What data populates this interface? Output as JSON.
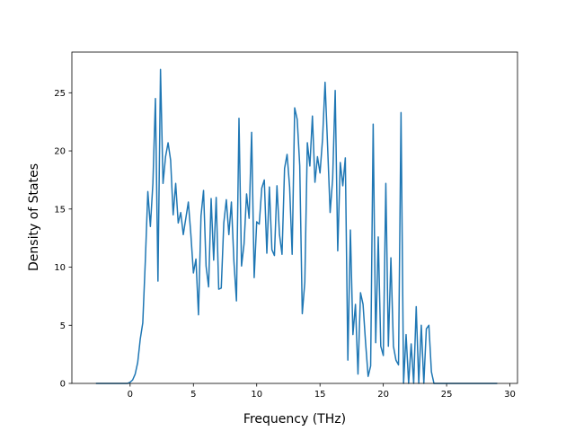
{
  "chart_data": {
    "type": "line",
    "title": "",
    "xlabel": "Frequency (THz)",
    "ylabel": "Density of States",
    "xlim": [
      -4.6,
      30.6
    ],
    "ylim": [
      0,
      28.5
    ],
    "xticks": [
      0,
      5,
      10,
      15,
      20,
      25,
      30
    ],
    "yticks": [
      0,
      5,
      10,
      15,
      20,
      25
    ],
    "grid": false,
    "legend": "none",
    "line_color": "#1f77b4",
    "series": [
      {
        "x": [
          -2.7,
          -1.0,
          -0.2,
          0.0,
          0.2,
          0.4,
          0.6,
          0.8,
          1.0,
          1.2,
          1.4,
          1.6,
          1.8,
          2.0,
          2.2,
          2.4,
          2.6,
          2.8,
          3.0,
          3.2,
          3.4,
          3.6,
          3.8,
          4.0,
          4.2,
          4.4,
          4.6,
          4.8,
          5.0,
          5.2,
          5.4,
          5.6,
          5.8,
          6.0,
          6.2,
          6.4,
          6.6,
          6.8,
          7.0,
          7.2,
          7.4,
          7.6,
          7.8,
          8.0,
          8.2,
          8.4,
          8.6,
          8.8,
          9.0,
          9.2,
          9.4,
          9.6,
          9.8,
          10.0,
          10.2,
          10.4,
          10.6,
          10.8,
          11.0,
          11.2,
          11.4,
          11.6,
          11.8,
          12.0,
          12.2,
          12.4,
          12.6,
          12.8,
          13.0,
          13.2,
          13.4,
          13.6,
          13.8,
          14.0,
          14.2,
          14.4,
          14.6,
          14.8,
          15.0,
          15.2,
          15.4,
          15.6,
          15.8,
          16.0,
          16.2,
          16.4,
          16.6,
          16.8,
          17.0,
          17.2,
          17.4,
          17.6,
          17.8,
          18.0,
          18.2,
          18.4,
          18.6,
          18.8,
          19.0,
          19.2,
          19.4,
          19.6,
          19.8,
          20.0,
          20.2,
          20.4,
          20.6,
          20.8,
          21.0,
          21.2,
          21.4,
          21.6,
          21.8,
          22.0,
          22.2,
          22.4,
          22.6,
          22.8,
          23.0,
          23.2,
          23.4,
          23.6,
          23.8,
          24.0,
          25.0,
          27.0,
          29.0
        ],
        "y": [
          0,
          0,
          0,
          0.1,
          0.3,
          0.8,
          1.8,
          3.8,
          5.2,
          10.5,
          16.5,
          13.5,
          17.2,
          24.5,
          8.8,
          27.0,
          17.2,
          19.5,
          20.7,
          19.2,
          14.5,
          17.2,
          13.8,
          14.7,
          12.8,
          14.2,
          15.6,
          12.8,
          9.5,
          10.7,
          5.9,
          14.4,
          16.6,
          10.1,
          8.3,
          15.9,
          10.6,
          16.0,
          8.1,
          8.2,
          13.8,
          15.8,
          12.8,
          15.6,
          10.5,
          7.1,
          22.8,
          10.1,
          12.0,
          16.3,
          14.2,
          21.6,
          9.1,
          13.9,
          13.7,
          16.8,
          17.5,
          11.2,
          16.9,
          11.5,
          11.0,
          17.0,
          12.8,
          11.1,
          18.5,
          19.7,
          16.9,
          11.1,
          23.7,
          22.7,
          18.7,
          6.0,
          8.7,
          20.7,
          18.7,
          23.0,
          17.3,
          19.5,
          18.1,
          21.0,
          25.9,
          20.4,
          14.7,
          17.6,
          25.2,
          11.4,
          19.0,
          17.0,
          19.4,
          2.0,
          13.2,
          4.2,
          6.8,
          0.8,
          7.8,
          6.8,
          3.5,
          0.6,
          1.5,
          22.3,
          3.5,
          12.6,
          3.2,
          2.4,
          17.2,
          3.2,
          10.8,
          3.2,
          2.0,
          1.6,
          23.3,
          0.0,
          4.2,
          0.0,
          3.4,
          0.0,
          6.6,
          0.0,
          5.0,
          0.0,
          4.7,
          5.0,
          1.0,
          0,
          0,
          0,
          0
        ]
      }
    ]
  }
}
